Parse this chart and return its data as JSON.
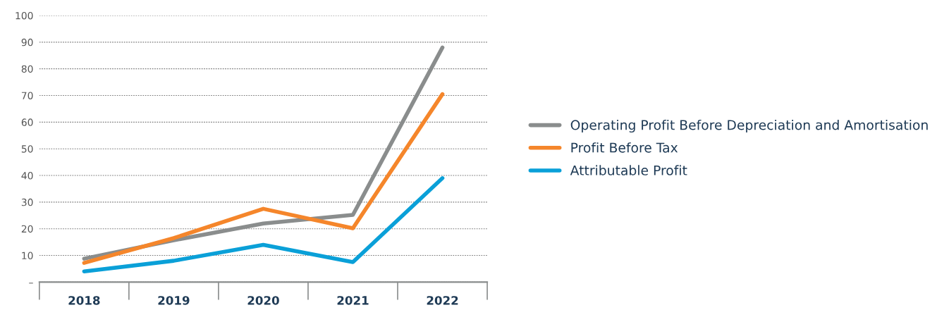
{
  "chart_data": {
    "type": "line",
    "categories": [
      "2018",
      "2019",
      "2020",
      "2021",
      "2022"
    ],
    "series": [
      {
        "name": "Operating Profit Before Depreciation and Amortisation",
        "color": "#8a8d8d",
        "values": [
          8.8,
          15.7,
          22,
          25.2,
          88
        ]
      },
      {
        "name": "Profit Before Tax",
        "color": "#f5862b",
        "values": [
          7.2,
          16.5,
          27.5,
          20.2,
          70.5
        ]
      },
      {
        "name": "Attributable Profit",
        "color": "#0aa0d8",
        "values": [
          4,
          8,
          14,
          7.5,
          39
        ]
      }
    ],
    "ylim": [
      0,
      100
    ],
    "yticks": [
      {
        "value": 0,
        "label": "–"
      },
      10,
      20,
      30,
      40,
      50,
      60,
      70,
      80,
      90,
      100
    ],
    "grid": "y",
    "legend": "right",
    "marker": "none",
    "line_style": "solid"
  }
}
